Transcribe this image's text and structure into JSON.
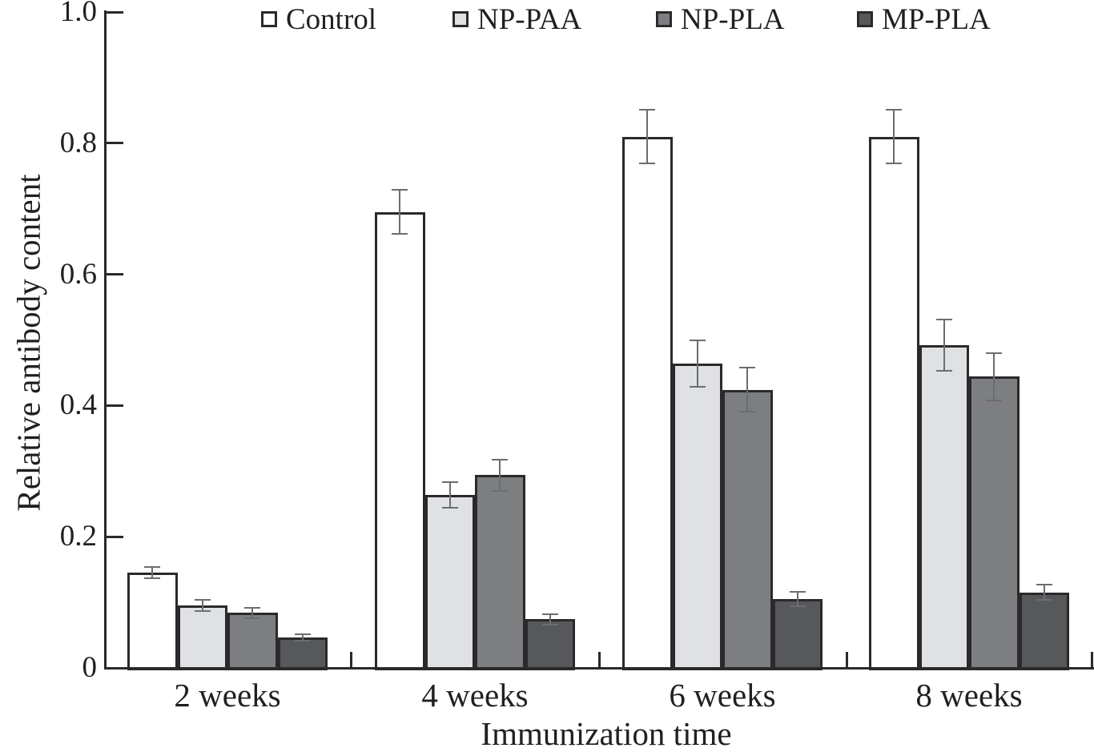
{
  "chart_data": {
    "type": "bar",
    "title": "",
    "xlabel": "Immunization time",
    "ylabel": "Relative antibody content",
    "categories": [
      "2 weeks",
      "4 weeks",
      "6 weeks",
      "8 weeks"
    ],
    "series": [
      {
        "name": "Control",
        "color": "#ffffff",
        "values": [
          0.145,
          0.695,
          0.81,
          0.81
        ],
        "errors": [
          0.01,
          0.035,
          0.042,
          0.042
        ]
      },
      {
        "name": "NP-PAA",
        "color": "#e0e1e3",
        "values": [
          0.095,
          0.264,
          0.464,
          0.492
        ],
        "errors": [
          0.01,
          0.021,
          0.037,
          0.04
        ]
      },
      {
        "name": "NP-PLA",
        "color": "#7d7e80",
        "values": [
          0.084,
          0.294,
          0.424,
          0.444
        ],
        "errors": [
          0.009,
          0.025,
          0.035,
          0.037
        ]
      },
      {
        "name": "MP-PLA",
        "color": "#57585a",
        "values": [
          0.046,
          0.074,
          0.105,
          0.115
        ],
        "errors": [
          0.006,
          0.009,
          0.012,
          0.013
        ]
      }
    ],
    "ylim": [
      0,
      1.0
    ],
    "yticks": {
      "values": [
        0,
        0.2,
        0.4,
        0.6,
        0.8,
        1.0
      ],
      "labels": [
        "0",
        "0.2",
        "0.4",
        "0.6",
        "0.8",
        "1.0"
      ]
    },
    "grid": false,
    "legend_position": "top-inside",
    "error_bars": true,
    "colors": {
      "axis": "#2a2a2c",
      "bar_border": "#2a2a2c",
      "error_bar": "#6b6d70",
      "text": "#231f20"
    }
  }
}
